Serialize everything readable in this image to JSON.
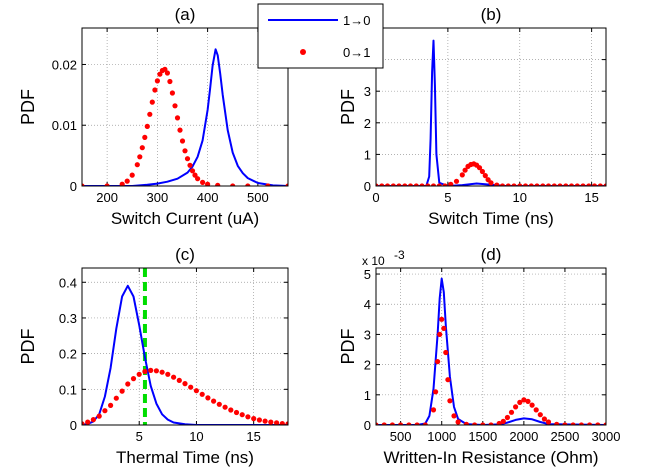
{
  "colors": {
    "switch_1_to_0": "#0000ff",
    "switch_0_to_1": "#ff0000",
    "marker_line": "#00dd00"
  },
  "legend": {
    "items": [
      "1→0",
      "0→1"
    ],
    "placement": "top, between panels (a) and (b)"
  },
  "chart_data": [
    {
      "panel": "(a)",
      "type": "line",
      "xlabel": "Switch Current (uA)",
      "ylabel": "PDF",
      "xlim": [
        150,
        560
      ],
      "ylim": [
        0,
        0.026
      ],
      "xticks": [
        200,
        300,
        400,
        500
      ],
      "yticks": [
        0,
        0.01,
        0.02
      ],
      "xtick_labels": [
        "200",
        "300",
        "400",
        "500"
      ],
      "ytick_labels": [
        "0",
        "0.01",
        "0.02"
      ],
      "grid": true,
      "series": [
        {
          "name": "1→0",
          "style": "line",
          "peak_x": 416,
          "peak_y": 0.0225,
          "width": 14,
          "x": [
            150,
            250,
            280,
            300,
            320,
            340,
            360,
            370,
            380,
            390,
            400,
            405,
            410,
            416,
            420,
            425,
            430,
            440,
            450,
            460,
            470,
            480,
            500,
            530,
            560
          ],
          "y": [
            0,
            0,
            0.0002,
            0.0004,
            0.0007,
            0.0012,
            0.0022,
            0.0032,
            0.0048,
            0.0075,
            0.0125,
            0.016,
            0.0198,
            0.0225,
            0.0215,
            0.0185,
            0.015,
            0.0092,
            0.0055,
            0.0033,
            0.0021,
            0.0013,
            0.0005,
            0.0001,
            0
          ]
        },
        {
          "name": "0→1",
          "style": "markers",
          "x": [
            150,
            200,
            230,
            240,
            250,
            260,
            265,
            270,
            275,
            280,
            285,
            290,
            295,
            300,
            305,
            310,
            315,
            320,
            325,
            330,
            335,
            340,
            345,
            350,
            355,
            360,
            365,
            370,
            375,
            380,
            390,
            400,
            420,
            450,
            480,
            520,
            560
          ],
          "y": [
            0,
            0,
            0.0003,
            0.0008,
            0.0018,
            0.0035,
            0.0048,
            0.0063,
            0.008,
            0.0098,
            0.0118,
            0.0138,
            0.0158,
            0.0173,
            0.0184,
            0.019,
            0.0192,
            0.0186,
            0.0172,
            0.0153,
            0.0132,
            0.0112,
            0.0092,
            0.0074,
            0.0058,
            0.0045,
            0.0034,
            0.0025,
            0.0018,
            0.0012,
            0.0006,
            0.0003,
            0.0001,
            0,
            0,
            0,
            0
          ]
        }
      ]
    },
    {
      "panel": "(b)",
      "type": "line",
      "xlabel": "Switch Time (ns)",
      "ylabel": "PDF",
      "xlim": [
        0,
        16
      ],
      "ylim": [
        0,
        5
      ],
      "xticks": [
        0,
        5,
        10,
        15
      ],
      "yticks": [
        0,
        1,
        2,
        3,
        4,
        5
      ],
      "xtick_labels": [
        "0",
        "5",
        "10",
        "15"
      ],
      "ytick_labels": [
        "0",
        "1",
        "2",
        "3",
        "4",
        "5"
      ],
      "grid": true,
      "series": [
        {
          "name": "1→0",
          "style": "line",
          "x": [
            0,
            3.5,
            3.7,
            3.8,
            3.9,
            4.0,
            4.1,
            4.2,
            4.4,
            5,
            6,
            7,
            8,
            9,
            16
          ],
          "y": [
            0,
            0,
            0.3,
            1.5,
            3.6,
            4.6,
            3.2,
            1.0,
            0.1,
            0,
            0.03,
            0.08,
            0.04,
            0,
            0
          ]
        },
        {
          "name": "0→1",
          "style": "markers",
          "x": [
            0,
            0.4,
            0.8,
            1.2,
            1.6,
            2,
            2.4,
            2.8,
            3.2,
            3.6,
            4.0,
            4.4,
            4.8,
            5.2,
            5.6,
            6.0,
            6.2,
            6.4,
            6.6,
            6.8,
            7.0,
            7.2,
            7.4,
            7.6,
            7.8,
            8.0,
            8.4,
            8.8,
            9.2,
            9.6,
            10,
            10.4,
            10.8,
            11.2,
            11.6,
            12,
            12.4,
            12.8,
            13.2,
            13.6,
            14,
            14.4,
            14.8,
            15.2,
            15.6,
            16
          ],
          "y": [
            0,
            0,
            0,
            0,
            0,
            0,
            0,
            0,
            0,
            0,
            0,
            0,
            0,
            0.05,
            0.15,
            0.35,
            0.5,
            0.62,
            0.68,
            0.7,
            0.66,
            0.58,
            0.46,
            0.33,
            0.2,
            0.1,
            0.03,
            0,
            0,
            0,
            0,
            0,
            0,
            0,
            0,
            0,
            0,
            0,
            0,
            0,
            0,
            0,
            0,
            0,
            0,
            0
          ]
        }
      ]
    },
    {
      "panel": "(c)",
      "type": "line",
      "xlabel": "Thermal Time (ns)",
      "ylabel": "PDF",
      "xlim": [
        0,
        18
      ],
      "ylim": [
        0,
        0.44
      ],
      "xticks": [
        5,
        10,
        15
      ],
      "yticks": [
        0,
        0.1,
        0.2,
        0.3,
        0.4
      ],
      "xtick_labels": [
        "5",
        "10",
        "15"
      ],
      "ytick_labels": [
        "0",
        "0.1",
        "0.2",
        "0.3",
        "0.4"
      ],
      "grid": true,
      "vline": {
        "x": 5.5,
        "style": "dashed",
        "color_key": "marker_line"
      },
      "series": [
        {
          "name": "1→0",
          "style": "line",
          "x": [
            0,
            0.5,
            1,
            1.5,
            2,
            2.5,
            3,
            3.5,
            4,
            4.5,
            5,
            5.5,
            6,
            6.5,
            7,
            7.5,
            8,
            9,
            10,
            11,
            12,
            18
          ],
          "y": [
            0,
            0.003,
            0.01,
            0.03,
            0.08,
            0.16,
            0.27,
            0.36,
            0.39,
            0.36,
            0.28,
            0.19,
            0.11,
            0.06,
            0.03,
            0.015,
            0.007,
            0.002,
            0,
            0,
            0,
            0
          ]
        },
        {
          "name": "0→1",
          "style": "markers",
          "x": [
            0,
            0.5,
            1,
            1.5,
            2,
            2.5,
            3,
            3.5,
            4,
            4.5,
            5,
            5.5,
            6,
            6.5,
            7,
            7.5,
            8,
            8.5,
            9,
            9.5,
            10,
            10.5,
            11,
            11.5,
            12,
            12.5,
            13,
            13.5,
            14,
            14.5,
            15,
            15.5,
            16,
            16.5,
            17,
            17.5,
            18
          ],
          "y": [
            0.003,
            0.008,
            0.015,
            0.025,
            0.04,
            0.055,
            0.075,
            0.095,
            0.115,
            0.13,
            0.142,
            0.15,
            0.153,
            0.152,
            0.148,
            0.142,
            0.134,
            0.125,
            0.116,
            0.106,
            0.096,
            0.086,
            0.076,
            0.067,
            0.058,
            0.05,
            0.042,
            0.035,
            0.029,
            0.023,
            0.018,
            0.014,
            0.011,
            0.008,
            0.006,
            0.004,
            0.003
          ]
        }
      ]
    },
    {
      "panel": "(d)",
      "type": "line",
      "xlabel": "Written-In Resistance (Ohm)",
      "ylabel": "PDF",
      "y_multiplier": "x 10",
      "y_multiplier_exponent": "-3",
      "xlim": [
        200,
        3000
      ],
      "ylim": [
        0,
        5.2
      ],
      "xticks": [
        500,
        1000,
        1500,
        2000,
        2500,
        3000
      ],
      "yticks": [
        0,
        1,
        2,
        3,
        4,
        5
      ],
      "xtick_labels": [
        "500",
        "1000",
        "1500",
        "2000",
        "2500",
        "3000"
      ],
      "ytick_labels": [
        "0",
        "1",
        "2",
        "3",
        "4",
        "5"
      ],
      "grid": true,
      "series": [
        {
          "name": "1→0",
          "style": "line",
          "x": [
            200,
            700,
            800,
            850,
            900,
            950,
            975,
            1000,
            1025,
            1050,
            1100,
            1150,
            1200,
            1300,
            1500,
            1700,
            1800,
            1900,
            2000,
            2100,
            2200,
            2300,
            3000
          ],
          "y": [
            0,
            0,
            0.05,
            0.3,
            1.2,
            3.0,
            4.2,
            4.85,
            4.4,
            3.3,
            1.6,
            0.6,
            0.2,
            0.03,
            0,
            0.02,
            0.08,
            0.17,
            0.22,
            0.19,
            0.1,
            0.03,
            0
          ]
        },
        {
          "name": "0→1",
          "style": "markers",
          "x": [
            200,
            300,
            400,
            500,
            600,
            700,
            800,
            900,
            925,
            950,
            975,
            1000,
            1025,
            1050,
            1075,
            1100,
            1150,
            1200,
            1300,
            1400,
            1500,
            1600,
            1700,
            1750,
            1800,
            1850,
            1900,
            1950,
            2000,
            2050,
            2100,
            2150,
            2200,
            2250,
            2300,
            2400,
            2500,
            2600,
            2700,
            2800,
            2900,
            3000
          ],
          "y": [
            0,
            0,
            0,
            0,
            0,
            0,
            0,
            0.5,
            1.1,
            2.1,
            3.0,
            3.5,
            3.2,
            2.4,
            1.5,
            0.8,
            0.3,
            0.1,
            0.02,
            0,
            0,
            0,
            0.05,
            0.12,
            0.25,
            0.42,
            0.6,
            0.75,
            0.83,
            0.78,
            0.66,
            0.5,
            0.34,
            0.2,
            0.1,
            0.02,
            0,
            0,
            0,
            0,
            0,
            0
          ]
        }
      ]
    }
  ]
}
